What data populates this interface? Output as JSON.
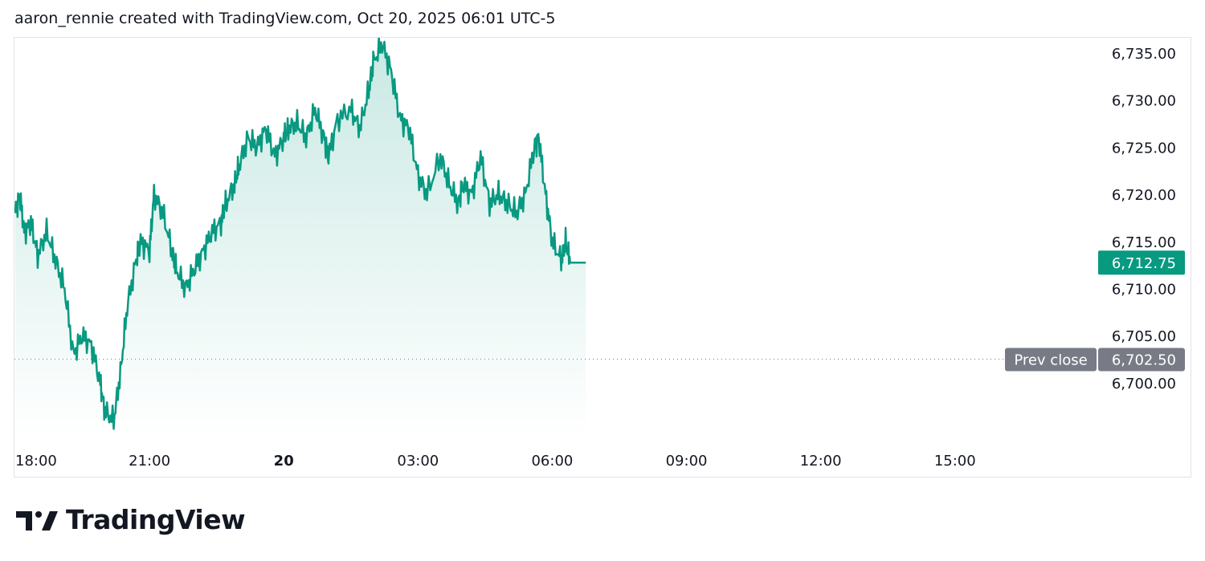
{
  "header": {
    "caption": "aaron_rennie created with TradingView.com, Oct 20, 2025 06:01 UTC-5"
  },
  "footer": {
    "brand": "TradingView"
  },
  "colors": {
    "line": "#089981",
    "fill_top": "rgba(8,153,129,0.22)",
    "fill_bottom": "rgba(8,153,129,0.0)",
    "last_price_bg": "#089981",
    "prev_close_bg": "#787b86",
    "prev_close_line": "#787b86"
  },
  "chart_data": {
    "type": "area",
    "x_ticks": [
      "18:00",
      "21:00",
      "20",
      "03:00",
      "06:00",
      "09:00",
      "12:00",
      "15:00"
    ],
    "x_tick_hours": [
      0,
      3,
      6,
      9,
      12,
      15,
      18,
      21
    ],
    "x_tick_bold": [
      false,
      false,
      true,
      false,
      false,
      false,
      false,
      false
    ],
    "y_ticks": [
      "6,735.00",
      "6,730.00",
      "6,725.00",
      "6,720.00",
      "6,715.00",
      "6,710.00",
      "6,705.00",
      "6,700.00"
    ],
    "y_tick_values": [
      6735,
      6730,
      6725,
      6720,
      6715,
      6710,
      6705,
      6700
    ],
    "ylim": [
      6695.5,
      6737
    ],
    "xlim_hours": [
      0,
      24.2
    ],
    "x_hours": [
      0,
      0.1,
      0.2,
      0.35,
      0.5,
      0.7,
      0.9,
      1.1,
      1.3,
      1.5,
      1.7,
      1.9,
      2.0,
      2.2,
      2.35,
      2.5,
      2.7,
      2.8,
      3.0,
      3.1,
      3.3,
      3.5,
      3.6,
      3.8,
      4.0,
      4.2,
      4.4,
      4.6,
      4.7,
      4.9,
      5.0,
      5.2,
      5.4,
      5.6,
      5.8,
      6.0,
      6.1,
      6.3,
      6.5,
      6.7,
      6.9,
      7.0,
      7.2,
      7.5,
      7.7,
      7.9,
      8.0,
      8.2,
      8.4,
      8.6,
      8.8,
      9.0,
      9.2,
      9.5,
      9.7,
      9.9,
      10.0,
      10.2,
      10.4,
      10.6,
      10.8,
      11.0,
      11.2,
      11.4,
      11.6,
      11.7,
      11.85,
      12.0,
      12.2,
      12.3,
      12.4,
      12.6,
      12.75
    ],
    "y_values": [
      6718,
      6720,
      6716,
      6717,
      6713.5,
      6716,
      6713,
      6710,
      6703,
      6705,
      6704,
      6700,
      6697,
      6696,
      6701,
      6708,
      6713,
      6715,
      6714,
      6720,
      6718,
      6714,
      6712,
      6710,
      6712,
      6714,
      6716,
      6717,
      6719,
      6721,
      6723,
      6726,
      6725,
      6727,
      6724,
      6726,
      6727,
      6727.5,
      6726,
      6729,
      6726,
      6724,
      6728,
      6729,
      6727,
      6731,
      6734,
      6736,
      6733,
      6728,
      6727,
      6722,
      6720,
      6724,
      6721,
      6719,
      6721,
      6720,
      6724,
      6719,
      6720,
      6719,
      6718,
      6720,
      6725,
      6726,
      6720,
      6715,
      6713,
      6715,
      6712.75,
      6712.75,
      6712.75
    ],
    "prev_close": 6702.5,
    "prev_close_label": "Prev close",
    "prev_close_value": "6,702.50",
    "last_price": 6712.75,
    "last_price_value": "6,712.75",
    "grid": false,
    "legend": "none"
  }
}
